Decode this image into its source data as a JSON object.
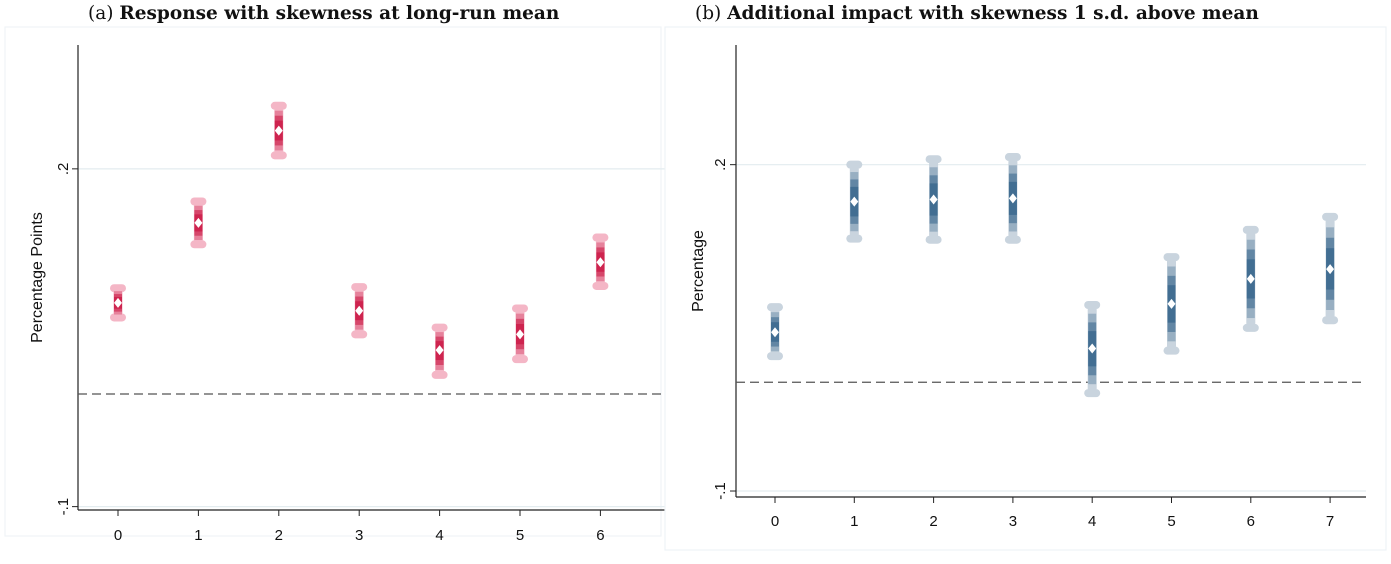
{
  "chart_data": [
    {
      "id": "a",
      "type": "scatter",
      "panel_tag": "(a)",
      "title": "Response with skewness at long-run mean",
      "ylabel": "Percentage Points",
      "xlabel": "",
      "x_ticks": [
        "0",
        "1",
        "2",
        "3",
        "4",
        "5",
        "6"
      ],
      "y_ticks": [
        {
          "value": 0.2,
          "label": ".2"
        },
        {
          "value": -0.1,
          "label": "-.1"
        }
      ],
      "ylim": [
        -0.103,
        0.31
      ],
      "grid": true,
      "reference_line": {
        "value": 0.0,
        "style": "dashed"
      },
      "series": [
        {
          "color": "#cc1f4a",
          "ci_color": "#f4b6c6",
          "points": [
            {
              "x": 0,
              "y": 0.081,
              "ci": [
                0.068,
                0.094
              ]
            },
            {
              "x": 1,
              "y": 0.152,
              "ci": [
                0.133,
                0.171
              ]
            },
            {
              "x": 2,
              "y": 0.234,
              "ci": [
                0.212,
                0.256
              ]
            },
            {
              "x": 3,
              "y": 0.074,
              "ci": [
                0.053,
                0.095
              ]
            },
            {
              "x": 4,
              "y": 0.039,
              "ci": [
                0.017,
                0.059
              ]
            },
            {
              "x": 5,
              "y": 0.053,
              "ci": [
                0.031,
                0.076
              ]
            },
            {
              "x": 6,
              "y": 0.117,
              "ci": [
                0.096,
                0.139
              ]
            }
          ]
        }
      ]
    },
    {
      "id": "b",
      "type": "scatter",
      "panel_tag": "(b)",
      "title": "Additional impact with skewness 1 s.d. above mean",
      "ylabel": "Percentage",
      "xlabel": "",
      "x_ticks": [
        "0",
        "1",
        "2",
        "3",
        "4",
        "5",
        "6",
        "7"
      ],
      "y_ticks": [
        {
          "value": 0.2,
          "label": ".2"
        },
        {
          "value": -0.1,
          "label": "-.1"
        }
      ],
      "ylim": [
        -0.1055,
        0.31
      ],
      "grid": true,
      "reference_line": {
        "value": 0.0,
        "style": "dashed"
      },
      "series": [
        {
          "color": "#3d6a8f",
          "ci_color": "#c9d4de",
          "points": [
            {
              "x": 0,
              "y": 0.046,
              "ci": [
                0.024,
                0.069
              ]
            },
            {
              "x": 1,
              "y": 0.166,
              "ci": [
                0.132,
                0.2
              ]
            },
            {
              "x": 2,
              "y": 0.168,
              "ci": [
                0.131,
                0.205
              ]
            },
            {
              "x": 3,
              "y": 0.169,
              "ci": [
                0.131,
                0.207
              ]
            },
            {
              "x": 4,
              "y": 0.031,
              "ci": [
                -0.01,
                0.071
              ]
            },
            {
              "x": 5,
              "y": 0.072,
              "ci": [
                0.029,
                0.115
              ]
            },
            {
              "x": 6,
              "y": 0.095,
              "ci": [
                0.05,
                0.14
              ]
            },
            {
              "x": 7,
              "y": 0.104,
              "ci": [
                0.057,
                0.152
              ]
            }
          ]
        }
      ]
    }
  ]
}
